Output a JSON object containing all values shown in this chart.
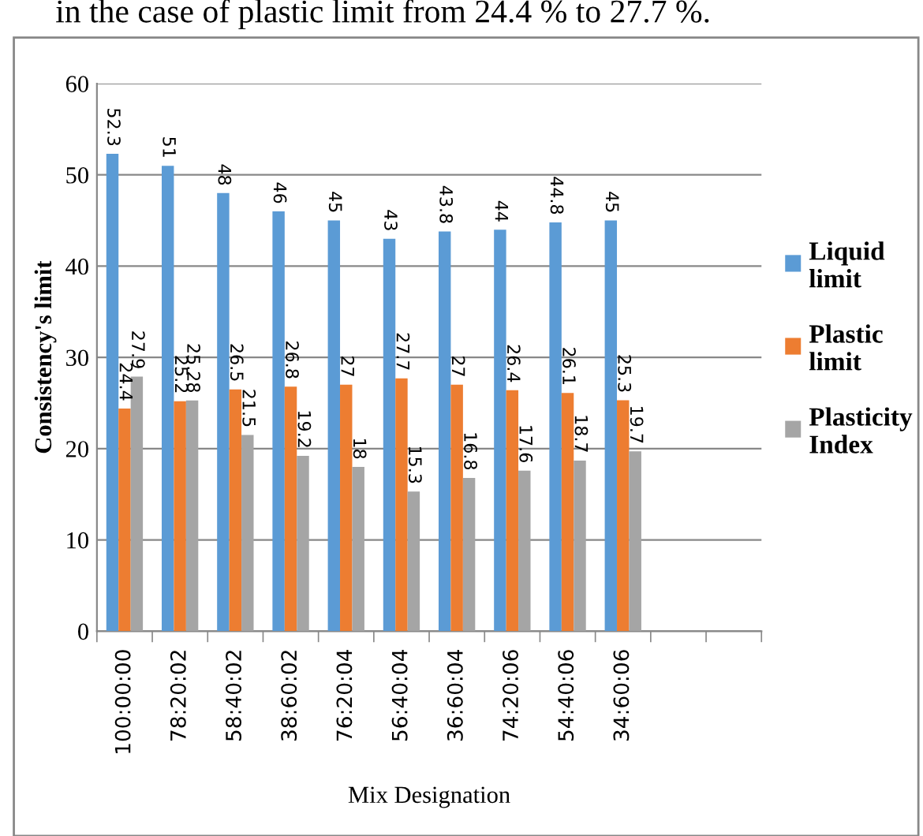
{
  "chart_data": {
    "type": "bar",
    "annotations": [
      "in the case of plastic limit from 24.4 % to 27.7 %."
    ],
    "xlabel": "Mix Designation",
    "ylabel": "Consistency's limit",
    "categories": [
      "100:00:00",
      "78:20:02",
      "58:40:02",
      "38:60:02",
      "76:20:04",
      "56:40:04",
      "36:60:04",
      "74:20:06",
      "54:40:06",
      "34:60:06",
      null,
      null
    ],
    "series": [
      {
        "name": "Liquid limit",
        "color": "#5b9bd5",
        "values": [
          52.3,
          51,
          48,
          46,
          45,
          43,
          43.8,
          44,
          44.8,
          45,
          null,
          null
        ]
      },
      {
        "name": "Plastic limit",
        "color": "#ed7d31",
        "values": [
          24.4,
          25.2,
          26.5,
          26.8,
          27,
          27.7,
          27,
          26.4,
          26.1,
          25.3,
          null,
          null
        ]
      },
      {
        "name": "Plasticity Index",
        "color": "#a5a5a5",
        "values": [
          27.9,
          25.28,
          21.5,
          19.2,
          18,
          15.3,
          16.8,
          17.6,
          18.7,
          19.7,
          null,
          null
        ]
      }
    ],
    "ylim": [
      0,
      60
    ],
    "yticks": [
      0,
      10,
      20,
      30,
      40,
      50,
      60
    ],
    "grid": "y",
    "legend": "right",
    "data_labels": true
  }
}
